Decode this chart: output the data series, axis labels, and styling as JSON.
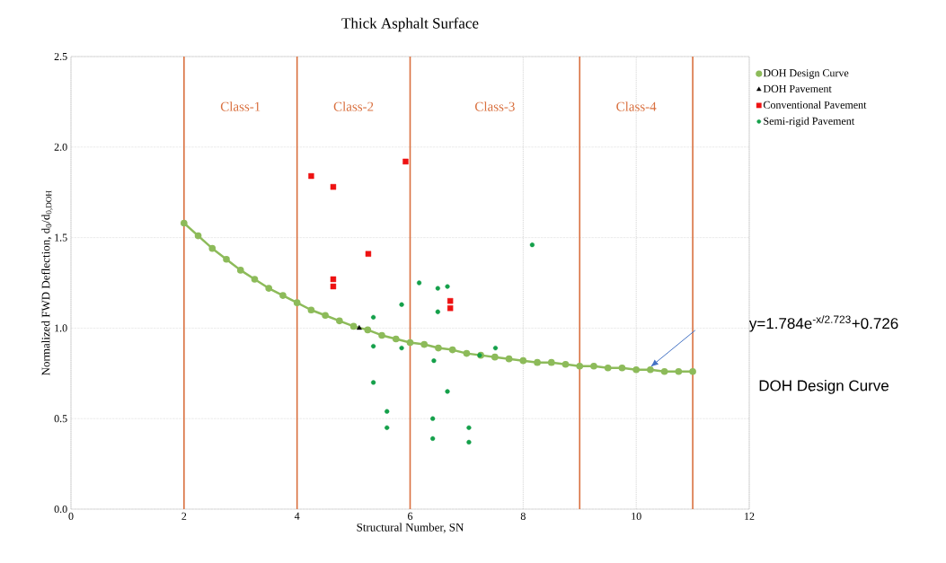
{
  "chart_data": {
    "type": "scatter",
    "title": "Thick Asphalt Surface",
    "xlabel": "Structural Number, SN",
    "ylabel": "Normalized FWD Deflection, d$_{0}$/d$_{0,DOH}$",
    "xlim": [
      0,
      12
    ],
    "ylim": [
      0,
      2.5
    ],
    "xticks": [
      0,
      2,
      4,
      6,
      8,
      10,
      12
    ],
    "yticks": [
      {
        "value": 0,
        "label": "0.0"
      },
      {
        "value": 0.5,
        "label": "0.5"
      },
      {
        "value": 1,
        "label": "1.0"
      },
      {
        "value": 1.5,
        "label": "1.5"
      },
      {
        "value": 2,
        "label": "2.0"
      },
      {
        "value": 2.5,
        "label": "2.5"
      }
    ],
    "grid": true,
    "legend": "top right",
    "series": [
      {
        "name": "DOH Design Curve",
        "type": "line",
        "marker": "circle",
        "color": "#8dbb5a",
        "x": [
          2,
          2.25,
          2.5,
          2.75,
          3,
          3.25,
          3.5,
          3.75,
          4,
          4.25,
          4.5,
          4.75,
          5,
          5.25,
          5.5,
          5.75,
          6,
          6.25,
          6.5,
          6.75,
          7,
          7.25,
          7.5,
          7.75,
          8,
          8.25,
          8.5,
          8.75,
          9,
          9.25,
          9.5,
          9.75,
          10,
          10.25,
          10.5,
          10.75,
          11
        ],
        "values": [
          1.58,
          1.51,
          1.44,
          1.38,
          1.32,
          1.27,
          1.22,
          1.18,
          1.14,
          1.1,
          1.07,
          1.04,
          1.01,
          0.99,
          0.96,
          0.94,
          0.92,
          0.91,
          0.89,
          0.88,
          0.86,
          0.85,
          0.84,
          0.83,
          0.82,
          0.81,
          0.81,
          0.8,
          0.79,
          0.79,
          0.78,
          0.78,
          0.77,
          0.77,
          0.76,
          0.76,
          0.76
        ]
      },
      {
        "name": "DOH Pavement",
        "marker": "triangle",
        "color": "#000000",
        "x": [
          5.1
        ],
        "values": [
          1.0
        ]
      },
      {
        "name": "Conventional Pavement",
        "marker": "square",
        "color": "#ee1111",
        "x": [
          4.25,
          4.64,
          5.92,
          5.26,
          4.64,
          4.64,
          6.71,
          6.71
        ],
        "values": [
          1.84,
          1.78,
          1.92,
          1.41,
          1.27,
          1.23,
          1.15,
          1.11
        ]
      },
      {
        "name": "Semi-rigid Pavement",
        "marker": "circle",
        "color": "#14a04a",
        "x": [
          6.16,
          6.49,
          6.66,
          5.85,
          6.49,
          5.35,
          5.35,
          5.85,
          6.42,
          7.23,
          7.51,
          5.35,
          6.66,
          5.59,
          5.59,
          6.4,
          6.4,
          7.04,
          7.04,
          8.16
        ],
        "values": [
          1.25,
          1.22,
          1.23,
          1.13,
          1.09,
          1.06,
          0.9,
          0.89,
          0.82,
          0.85,
          0.89,
          0.7,
          0.65,
          0.54,
          0.45,
          0.5,
          0.39,
          0.45,
          0.37,
          1.46
        ]
      }
    ],
    "ref_lines": [
      {
        "axis": "x",
        "value": 2,
        "color": "#d9703f"
      },
      {
        "axis": "x",
        "value": 4,
        "color": "#d9703f"
      },
      {
        "axis": "x",
        "value": 6,
        "color": "#d9703f"
      },
      {
        "axis": "x",
        "value": 9,
        "color": "#d9703f"
      },
      {
        "axis": "x",
        "value": 11,
        "color": "#d9703f"
      }
    ],
    "annotations": [
      "Class-1",
      "Class-2",
      "Class-3",
      "Class-4",
      "y=1.784e$^{-x/2.723}$+0.726",
      "DOH Design Curve"
    ]
  }
}
